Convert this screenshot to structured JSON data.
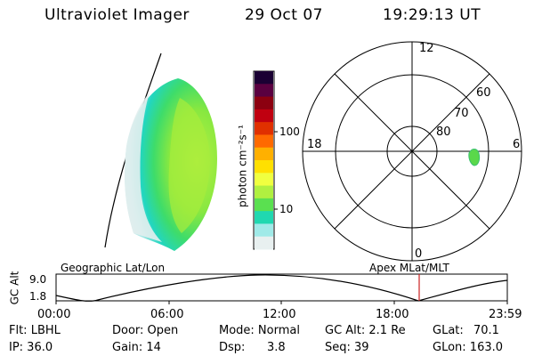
{
  "header": {
    "instrument": "Ultraviolet Imager",
    "date": "29 Oct 07",
    "time": "19:29:13 UT"
  },
  "colorbar": {
    "label": "photon cm⁻²s⁻¹",
    "ticks": [
      "100",
      "10"
    ],
    "scale": "log",
    "colors": [
      "#1a0033",
      "#5a0040",
      "#8c0010",
      "#c00010",
      "#e03000",
      "#ff6a00",
      "#ffb000",
      "#ffe000",
      "#f0ff40",
      "#b0f040",
      "#5ae050",
      "#20d8b0",
      "#a0eae8",
      "#e8f0f0"
    ]
  },
  "polar": {
    "mlt_labels": [
      "12",
      "18",
      "6",
      "0"
    ],
    "lat_labels": [
      "60",
      "70",
      "80"
    ]
  },
  "timeline": {
    "left_label": "Geographic Lat/Lon",
    "right_label": "Apex MLat/MLT",
    "y_axis_label": "GC Alt",
    "y_ticks": [
      "9.0",
      "1.8"
    ],
    "x_ticks": [
      "00:00",
      "06:00",
      "12:00",
      "18:00",
      "23:59"
    ],
    "marker_color": "#cc2222"
  },
  "footer": {
    "flt_label": "Flt: LBHL",
    "ip_label": "IP: 36.0",
    "door_label": "Door: Open",
    "gain_label": "Gain: 14",
    "mode_label": "Mode: Normal",
    "dsp_label": "Dsp:",
    "dsp_value": "3.8",
    "gcalt_label": "GC Alt: 2.1 Re",
    "seq_label": "Seq: 39",
    "glat_label": "GLat:",
    "glat_value": "70.1",
    "glon_label": "GLon: 163.0"
  }
}
